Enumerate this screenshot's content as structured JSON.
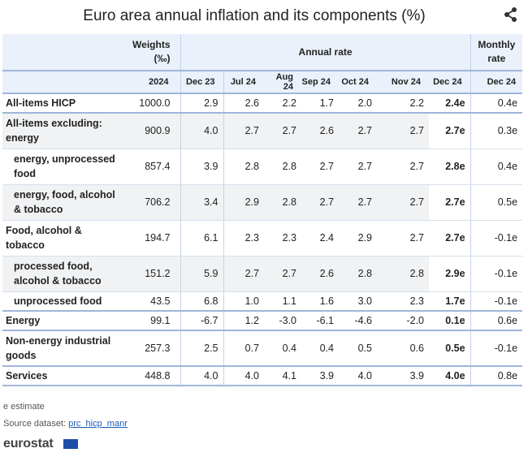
{
  "title": "Euro area annual inflation and its components (%)",
  "header": {
    "weights": "Weights (‰)",
    "annual_rate": "Annual rate",
    "monthly_rate": "Monthly rate",
    "weights_year": "2024",
    "months": [
      "Dec 23",
      "Jul 24",
      "Aug 24",
      "Sep 24",
      "Oct 24",
      "Nov 24",
      "Dec 24"
    ],
    "monthly_month": "Dec 24"
  },
  "chart_data": {
    "type": "table",
    "title": "Euro area annual inflation and its components (%)",
    "columns": [
      "Weights 2024",
      "Dec 23",
      "Jul 24",
      "Aug 24",
      "Sep 24",
      "Oct 24",
      "Nov 24",
      "Dec 24",
      "Monthly rate Dec 24"
    ],
    "rows": [
      {
        "label": "All-items HICP",
        "weight": "1000.0",
        "annual": [
          "2.9",
          "2.6",
          "2.2",
          "1.7",
          "2.0",
          "2.2",
          "2.4e"
        ],
        "monthly": "0.4e"
      },
      {
        "label": "All-items excluding: energy",
        "weight": "900.9",
        "annual": [
          "4.0",
          "2.7",
          "2.7",
          "2.6",
          "2.7",
          "2.7",
          "2.7e"
        ],
        "monthly": "0.3e"
      },
      {
        "label": "energy, unprocessed food",
        "weight": "857.4",
        "annual": [
          "3.9",
          "2.8",
          "2.8",
          "2.7",
          "2.7",
          "2.7",
          "2.8e"
        ],
        "monthly": "0.4e"
      },
      {
        "label": "energy, food, alcohol & tobacco",
        "weight": "706.2",
        "annual": [
          "3.4",
          "2.9",
          "2.8",
          "2.7",
          "2.7",
          "2.7",
          "2.7e"
        ],
        "monthly": "0.5e"
      },
      {
        "label": "Food, alcohol & tobacco",
        "weight": "194.7",
        "annual": [
          "6.1",
          "2.3",
          "2.3",
          "2.4",
          "2.9",
          "2.7",
          "2.7e"
        ],
        "monthly": "-0.1e"
      },
      {
        "label": "processed food, alcohol & tobacco",
        "weight": "151.2",
        "annual": [
          "5.9",
          "2.7",
          "2.7",
          "2.6",
          "2.8",
          "2.8",
          "2.9e"
        ],
        "monthly": "-0.1e"
      },
      {
        "label": "unprocessed food",
        "weight": "43.5",
        "annual": [
          "6.8",
          "1.0",
          "1.1",
          "1.6",
          "3.0",
          "2.3",
          "1.7e"
        ],
        "monthly": "-0.1e"
      },
      {
        "label": "Energy",
        "weight": "99.1",
        "annual": [
          "-6.7",
          "1.2",
          "-3.0",
          "-6.1",
          "-4.6",
          "-2.0",
          "0.1e"
        ],
        "monthly": "0.6e"
      },
      {
        "label": "Non-energy industrial goods",
        "weight": "257.3",
        "annual": [
          "2.5",
          "0.7",
          "0.4",
          "0.4",
          "0.5",
          "0.6",
          "0.5e"
        ],
        "monthly": "-0.1e"
      },
      {
        "label": "Services",
        "weight": "448.8",
        "annual": [
          "4.0",
          "4.0",
          "4.1",
          "3.9",
          "4.0",
          "3.9",
          "4.0e"
        ],
        "monthly": "0.8e"
      }
    ]
  },
  "footer": {
    "note": "e estimate",
    "source_prefix": "Source dataset: ",
    "source_link": "prc_hicp_manr",
    "logo": "eurostat"
  },
  "icons": {
    "share": "share-icon",
    "flag": "eu-flag-icon"
  },
  "colors": {
    "header_bg": "#eaf1fb",
    "shade_bg": "#f0f2f4",
    "rule": "#9fb6da",
    "link": "#1a5ab8",
    "flag": "#1f4ea8"
  }
}
